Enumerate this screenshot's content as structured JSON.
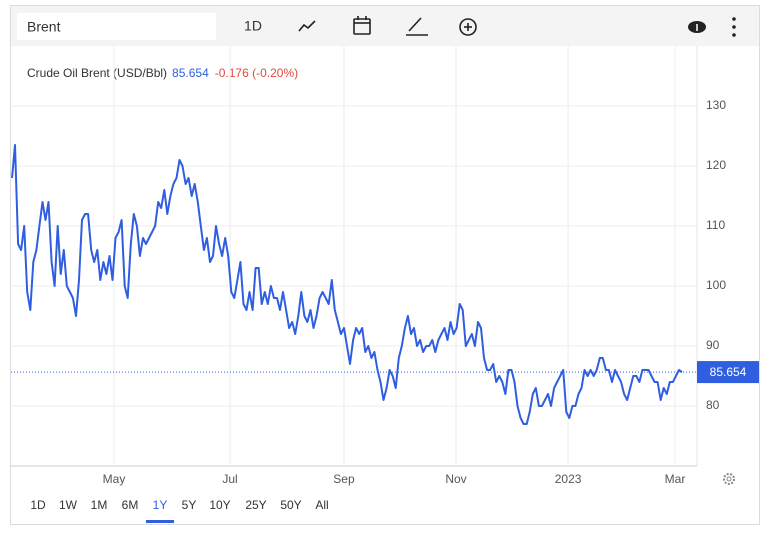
{
  "toolbar": {
    "search": "Brent",
    "interval": "1D"
  },
  "ranges": {
    "options": [
      "1D",
      "1W",
      "1M",
      "6M",
      "1Y",
      "5Y",
      "10Y",
      "25Y",
      "50Y",
      "All"
    ],
    "selected": 4
  },
  "chart_data": {
    "type": "line",
    "title": "Crude Oil Brent (USD/Bbl)",
    "change": "-0.176 (-0.20%)",
    "series": [
      {
        "name": "Crude Oil Brent (USD/Bbl)",
        "color": "#2f5ee0",
        "values": [
          118,
          123.5,
          107,
          106,
          110,
          99,
          96,
          104,
          106,
          110,
          114,
          111,
          114,
          104,
          100,
          110,
          102,
          106,
          100,
          99,
          98,
          95,
          101,
          111,
          112,
          112,
          106,
          104,
          106,
          101,
          104,
          102,
          105,
          101,
          108,
          109,
          111,
          100,
          98,
          107,
          112,
          110,
          105,
          108,
          107,
          108,
          109,
          110,
          114,
          113,
          116,
          112,
          115,
          117,
          118,
          121,
          120,
          117,
          118,
          115,
          117,
          114,
          110,
          106,
          108,
          104,
          105,
          110,
          107,
          105,
          108,
          105,
          99,
          98,
          101,
          104,
          97,
          96,
          99,
          96,
          103,
          103,
          97,
          99,
          97,
          100,
          98,
          98,
          96,
          99,
          96,
          93,
          94,
          92,
          95,
          99,
          95,
          94,
          96,
          93,
          95,
          98,
          99,
          98,
          97,
          101,
          96,
          94,
          92,
          93,
          90,
          87,
          91,
          93,
          92,
          93,
          89,
          90,
          88,
          89,
          86,
          84,
          81,
          83,
          86,
          85,
          83,
          88,
          90,
          93,
          95,
          92,
          93,
          90,
          91,
          89,
          90,
          90,
          91,
          89,
          91,
          92,
          93,
          91,
          94,
          92,
          93,
          97,
          96,
          90,
          91,
          92,
          90,
          94,
          93,
          88,
          86,
          86,
          87,
          84,
          85,
          84,
          82,
          86,
          86,
          84,
          80,
          78,
          77,
          77,
          79,
          82,
          83,
          80,
          80,
          81,
          82,
          80,
          83,
          84,
          85,
          86,
          79,
          78,
          80,
          80,
          82,
          83,
          86,
          85,
          86,
          85,
          86,
          88,
          88,
          86,
          86,
          84,
          86,
          85,
          84,
          82,
          81,
          83,
          85,
          85,
          84,
          86,
          86,
          86,
          85,
          84,
          84,
          81,
          83,
          82,
          84,
          84,
          85,
          86,
          85.654
        ]
      }
    ],
    "xlim": [
      0,
      220
    ],
    "xticks": [
      {
        "value": 33.5,
        "label": "May"
      },
      {
        "value": 71.6,
        "label": "Jul"
      },
      {
        "value": 109,
        "label": "Sep"
      },
      {
        "value": 145.8,
        "label": "Nov"
      },
      {
        "value": 182.6,
        "label": "2023"
      },
      {
        "value": 217.7,
        "label": "Mar"
      }
    ],
    "ylim": [
      70,
      140
    ],
    "yticks": [
      80,
      90,
      100,
      110,
      120,
      130
    ],
    "grid": true
  }
}
